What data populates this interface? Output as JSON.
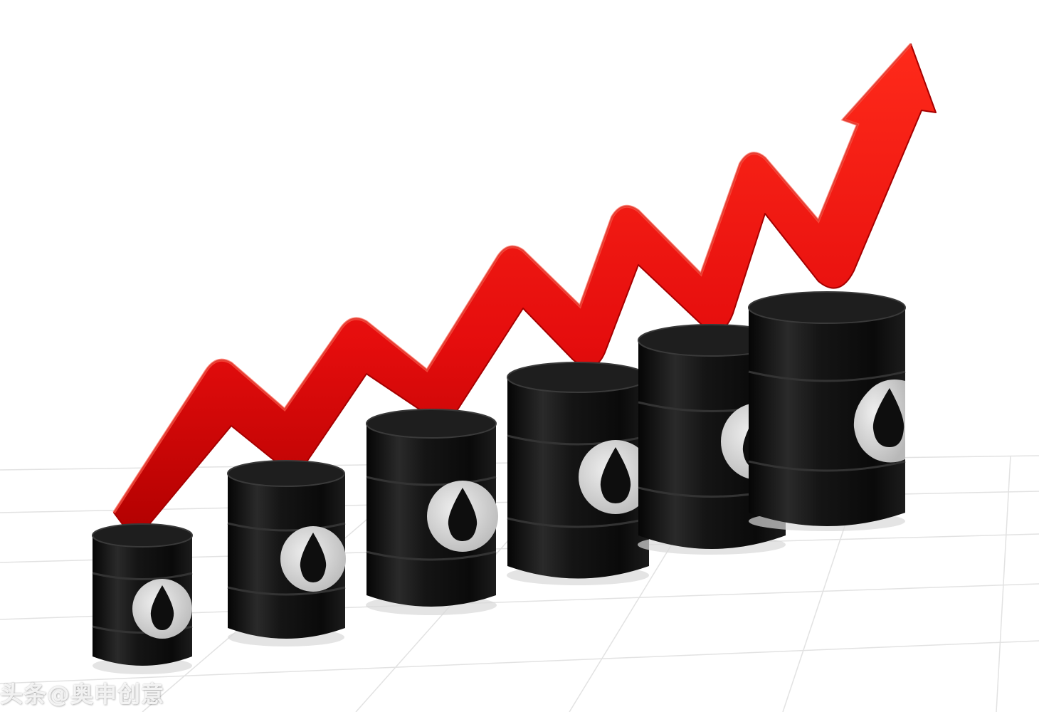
{
  "image": {
    "subject": "oil-barrels-rising-price",
    "background_color": "#ffffff",
    "barrel_color": "#111111",
    "label_color": "#d4d4d4",
    "drop_color": "#0e0e0e",
    "arrow_color": "#ee1111",
    "grid_color": "#dcdcdc",
    "barrel_count": 6
  },
  "watermark": {
    "text": "头条@奥申创意"
  }
}
